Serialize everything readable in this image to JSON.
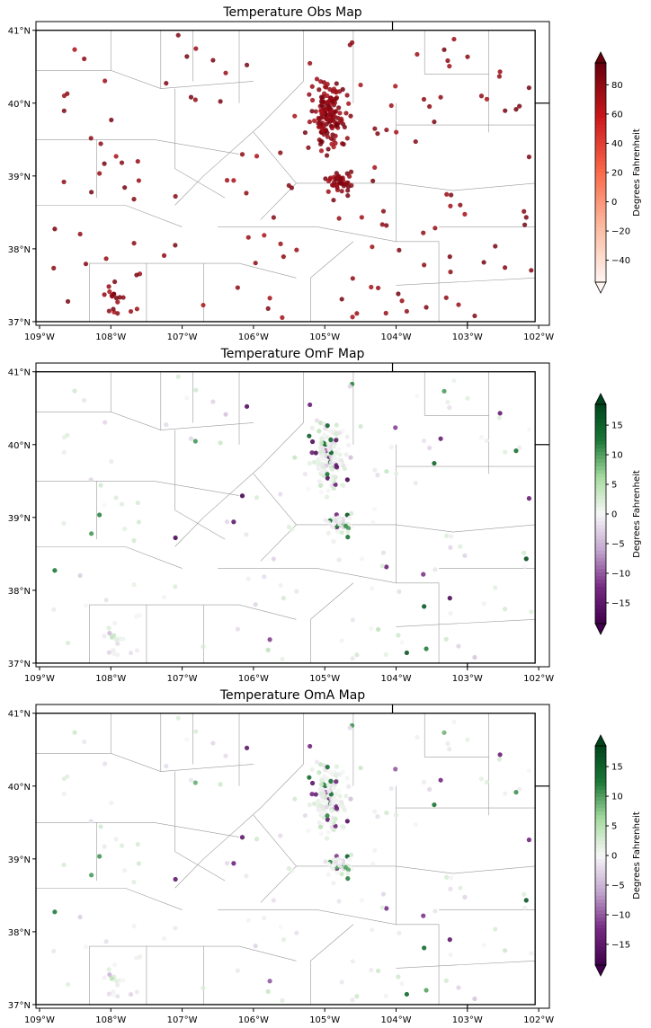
{
  "figure": {
    "panels": [
      {
        "title": "Temperature Obs Map",
        "colorbar": {
          "label": "Degrees Fahrenheit",
          "ticks": [
            "80",
            "60",
            "40",
            "20",
            "0",
            "−20",
            "−40"
          ],
          "tick_values": [
            80,
            60,
            40,
            20,
            0,
            -20,
            -40
          ],
          "range": [
            -55,
            95
          ],
          "colormap": "Reds",
          "extend": "both"
        }
      },
      {
        "title": "Temperature OmF Map",
        "colorbar": {
          "label": "Degrees Fahrenheit",
          "ticks": [
            "15",
            "10",
            "5",
            "0",
            "−5",
            "−10",
            "−15"
          ],
          "tick_values": [
            15,
            10,
            5,
            0,
            -5,
            -10,
            -15
          ],
          "range": [
            -18.5,
            18.5
          ],
          "colormap": "PRGn",
          "extend": "both"
        }
      },
      {
        "title": "Temperature OmA Map",
        "colorbar": {
          "label": "Degrees Fahrenheit",
          "ticks": [
            "15",
            "10",
            "5",
            "0",
            "−5",
            "−10",
            "−15"
          ],
          "tick_values": [
            15,
            10,
            5,
            0,
            -5,
            -10,
            -15
          ],
          "range": [
            -18.5,
            18.5
          ],
          "colormap": "PRGn",
          "extend": "both"
        }
      }
    ],
    "axes": {
      "x_ticks": [
        "109°W",
        "108°W",
        "107°W",
        "106°W",
        "105°W",
        "104°W",
        "103°W",
        "102°W"
      ],
      "y_ticks": [
        "41°N",
        "40°N",
        "39°N",
        "38°N",
        "37°N"
      ],
      "lon_range": [
        -109.05,
        -101.85
      ],
      "lat_range": [
        36.95,
        41.12
      ],
      "state_boundary": {
        "west": -109.05,
        "east": -102.05,
        "south": 37.0,
        "north": 41.0
      }
    },
    "colors": {
      "obs_low": "#fff5f0",
      "obs_high": "#67000d",
      "purple_end": "#40004b",
      "neutral": "#f7f7f7",
      "green_end": "#00441b",
      "county_lines": "#9a9a9a",
      "state_lines": "#000000"
    }
  }
}
